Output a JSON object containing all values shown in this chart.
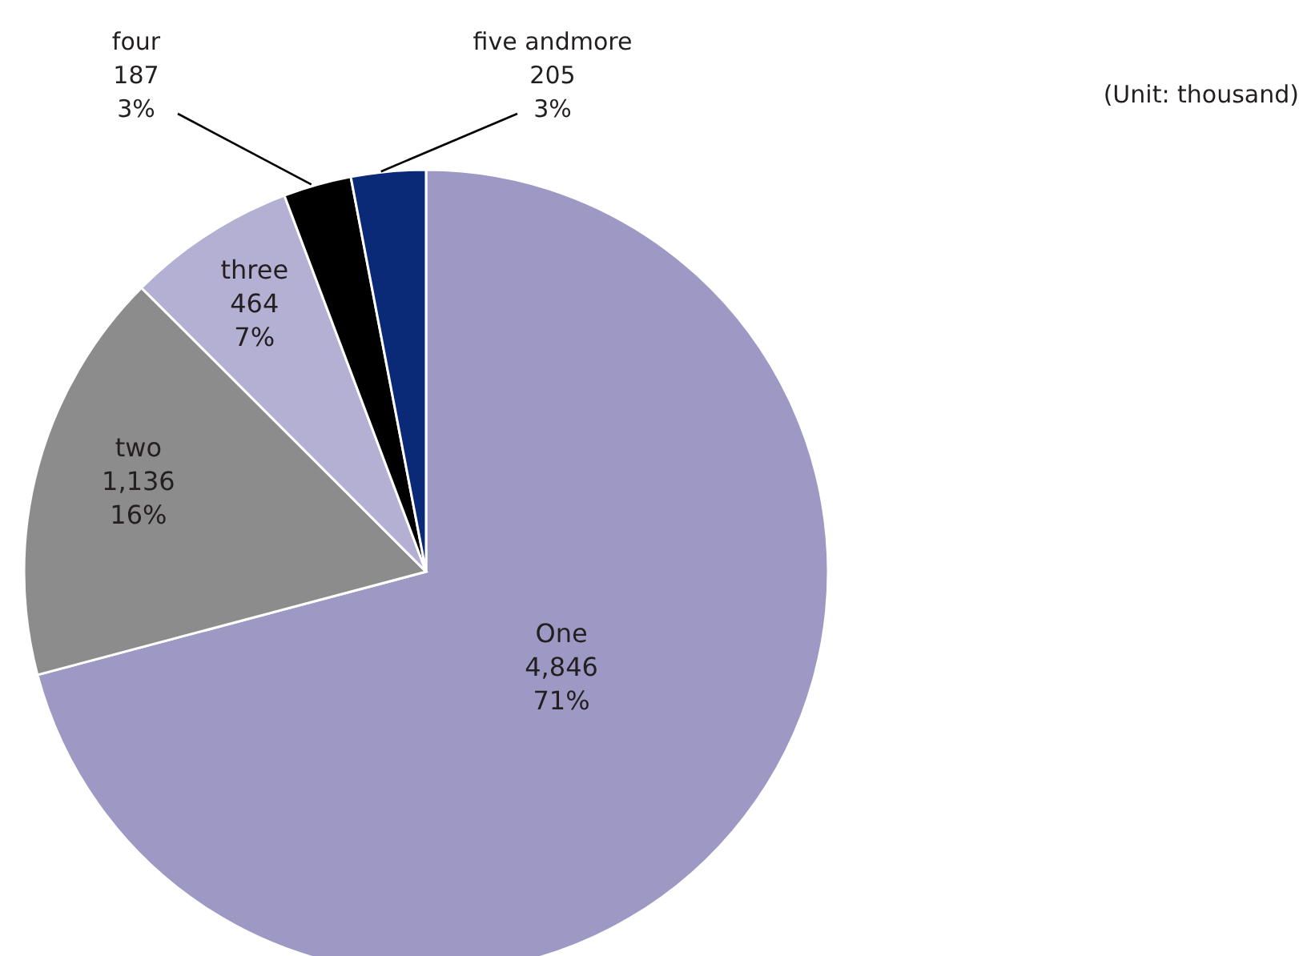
{
  "chart_data": {
    "type": "pie",
    "categories": [
      "One",
      "two",
      "three",
      "four",
      "five andmore"
    ],
    "values": [
      4846,
      1136,
      464,
      187,
      205
    ],
    "value_labels": [
      "4,846\n71%",
      "1,136\n16%",
      "464\n7%",
      "187\n3%",
      "205\n3%"
    ],
    "colors": [
      "#9e99c4",
      "#8c8c8c",
      "#b3b0d3",
      "#000000",
      "#0a2a78"
    ],
    "annotations": [
      "(Unit: thousand)"
    ],
    "legend": false
  }
}
